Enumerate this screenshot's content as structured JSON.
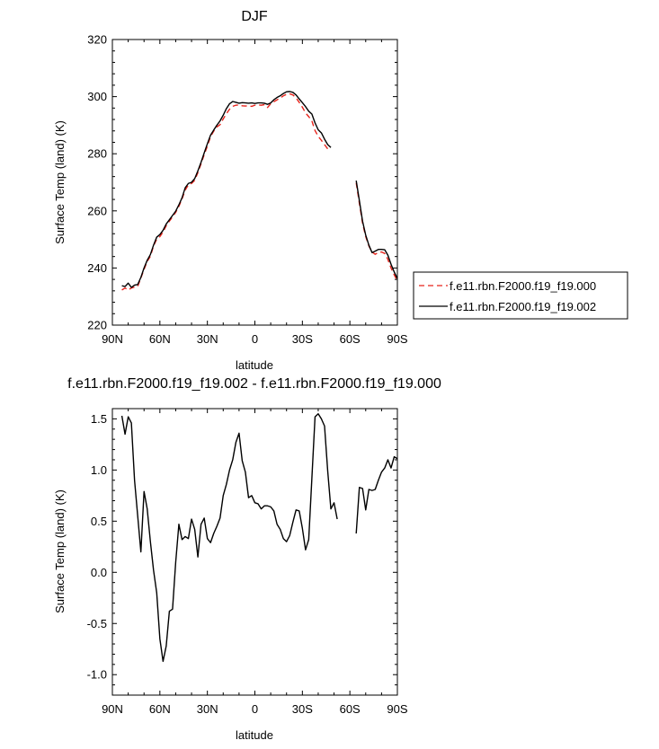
{
  "chart_data": [
    {
      "type": "line",
      "title": "DJF",
      "xlabel": "latitude",
      "ylabel": "Surface Temp (land) (K)",
      "xlim": [
        90,
        -90
      ],
      "ylim": [
        220,
        320
      ],
      "x_ticks": [
        90,
        60,
        30,
        0,
        -30,
        -60,
        -90
      ],
      "x_tick_labels": [
        "90N",
        "60N",
        "30N",
        "0",
        "30S",
        "60S",
        "90S"
      ],
      "y_ticks": [
        220,
        240,
        260,
        280,
        300,
        320
      ],
      "y_tick_labels": [
        "220",
        "240",
        "260",
        "280",
        "300",
        "320"
      ],
      "legend_position": "right",
      "series": [
        {
          "name": "f.e11.rbn.F2000.f19_f19.000",
          "color": "#e8231b",
          "dash": "dashed",
          "x": [
            84,
            82,
            80,
            78,
            76,
            74,
            72,
            70,
            68,
            66,
            64,
            62,
            60,
            58,
            56,
            54,
            52,
            50,
            48,
            46,
            44,
            42,
            40,
            38,
            36,
            34,
            32,
            30,
            28,
            26,
            24,
            22,
            20,
            18,
            16,
            14,
            12,
            10,
            8,
            6,
            4,
            2,
            0,
            -2,
            -4,
            -6,
            -8,
            -10,
            -12,
            -14,
            -16,
            -18,
            -20,
            -22,
            -24,
            -26,
            -28,
            -30,
            -32,
            -34,
            -36,
            -38,
            -40,
            -42,
            -44,
            -46,
            -48,
            -50,
            -52,
            -54,
            null,
            -64,
            -66,
            -68,
            -70,
            -72,
            -74,
            -76,
            -78,
            -80,
            -82,
            -84,
            -86,
            -88,
            -90
          ],
          "y": [
            232.3,
            233.0,
            232.3,
            233.0,
            233.3,
            233.6,
            236.5,
            239.5,
            242.3,
            244.1,
            247.7,
            250.1,
            251.0,
            252.6,
            254.8,
            256.4,
            257.9,
            259.5,
            261.6,
            264.2,
            267.3,
            269.1,
            269.6,
            270.7,
            273.4,
            276.5,
            279.7,
            282.7,
            286.0,
            287.9,
            289.4,
            290.2,
            292.2,
            294.0,
            295.6,
            296.6,
            297.0,
            297.1,
            296.8,
            296.7,
            296.8,
            296.6,
            297.0,
            297.1,
            297.0,
            297.2,
            296.2,
            297.5,
            298.2,
            298.9,
            299.5,
            300.3,
            300.8,
            301.0,
            300.6,
            299.6,
            298.0,
            296.3,
            294.3,
            293.0,
            291.5,
            288.1,
            286.1,
            284.7,
            283.2,
            281.7,
            null,
            null,
            null,
            null,
            null,
            269.8,
            262.7,
            255.7,
            251.0,
            247.7,
            245.6,
            244.8,
            245.4,
            245.6,
            245.1,
            243.0,
            240.0,
            237.6,
            235.5
          ],
          "note_gap": true
        },
        {
          "name": "f.e11.rbn.F2000.f19_f19.002",
          "color": "#000000",
          "dash": "solid",
          "x": [
            84,
            82,
            80,
            78,
            76,
            74,
            72,
            70,
            68,
            66,
            64,
            62,
            60,
            58,
            56,
            54,
            52,
            50,
            48,
            46,
            44,
            42,
            40,
            38,
            36,
            34,
            32,
            30,
            28,
            26,
            24,
            22,
            20,
            18,
            16,
            14,
            12,
            10,
            8,
            6,
            4,
            2,
            0,
            -2,
            -4,
            -6,
            -8,
            -10,
            -12,
            -14,
            -16,
            -18,
            -20,
            -22,
            -24,
            -26,
            -28,
            -30,
            -32,
            -34,
            -36,
            -38,
            -40,
            -42,
            -44,
            -46,
            -48,
            -50,
            -52,
            -54,
            null,
            -64,
            -66,
            -68,
            -70,
            -72,
            -74,
            -76,
            -78,
            -80,
            -82,
            -84,
            -86,
            -88,
            -90
          ],
          "y": [
            233.8,
            233.5,
            234.7,
            233.2,
            234.0,
            234.2,
            236.7,
            240.0,
            242.7,
            244.7,
            248.0,
            250.8,
            251.7,
            253.2,
            255.4,
            256.9,
            258.4,
            259.9,
            262.1,
            264.6,
            268.1,
            269.6,
            270.0,
            271.3,
            274.0,
            277.0,
            280.3,
            283.5,
            286.5,
            288.3,
            290.0,
            291.5,
            293.5,
            295.8,
            297.5,
            298.3,
            298.0,
            297.7,
            297.9,
            297.8,
            297.7,
            297.8,
            297.6,
            297.8,
            297.8,
            297.7,
            297.3,
            297.8,
            298.9,
            299.7,
            300.3,
            301.1,
            301.7,
            301.8,
            301.5,
            300.6,
            299.2,
            297.9,
            296.5,
            294.9,
            293.9,
            290.8,
            288.4,
            287.3,
            285.1,
            283.2,
            282.2,
            null,
            null,
            null,
            null,
            270.6,
            263.6,
            256.4,
            251.5,
            248.0,
            245.4,
            245.9,
            246.5,
            246.5,
            246.4,
            244.5,
            241.3,
            238.6,
            236.3
          ]
        }
      ]
    },
    {
      "type": "line",
      "title": "f.e11.rbn.F2000.f19_f19.002 - f.e11.rbn.F2000.f19_f19.000",
      "xlabel": "latitude",
      "ylabel": "Surface Temp (land) (K)",
      "xlim": [
        90,
        -90
      ],
      "ylim": [
        -1.2,
        1.6
      ],
      "x_ticks": [
        90,
        60,
        30,
        0,
        -30,
        -60,
        -90
      ],
      "x_tick_labels": [
        "90N",
        "60N",
        "30N",
        "0",
        "30S",
        "60S",
        "90S"
      ],
      "y_ticks": [
        -1.0,
        -0.5,
        0.0,
        0.5,
        1.0,
        1.5
      ],
      "y_tick_labels": [
        "-1.0",
        "-0.5",
        "0.0",
        "0.5",
        "1.0",
        "1.5"
      ],
      "series": [
        {
          "color": "#000000",
          "x": [
            84,
            82,
            80,
            78,
            76,
            74,
            72,
            70,
            68,
            66,
            64,
            62,
            60,
            58,
            56,
            54,
            52,
            50,
            48,
            46,
            44,
            42,
            40,
            38,
            36,
            34,
            32,
            30,
            28,
            26,
            24,
            22,
            20,
            18,
            16,
            14,
            12,
            10,
            8,
            6,
            4,
            2,
            0,
            -2,
            -4,
            -6,
            -8,
            -10,
            -12,
            -14,
            -16,
            -18,
            -20,
            -22,
            -24,
            -26,
            -28,
            -30,
            -32,
            -34,
            -36,
            -38,
            -40,
            -42,
            -44,
            -46,
            -48,
            -50,
            -52,
            -54,
            null,
            -64,
            -66,
            -68,
            -70,
            -72,
            -74,
            -76,
            -78,
            -80,
            -82,
            -84,
            -86,
            -88,
            -90
          ],
          "y": [
            1.53,
            1.35,
            1.52,
            1.46,
            0.9,
            0.55,
            0.2,
            0.79,
            0.62,
            0.3,
            0.02,
            -0.2,
            -0.65,
            -0.87,
            -0.72,
            -0.38,
            -0.36,
            0.1,
            0.47,
            0.32,
            0.35,
            0.33,
            0.52,
            0.42,
            0.15,
            0.47,
            0.53,
            0.33,
            0.29,
            0.38,
            0.45,
            0.53,
            0.75,
            0.86,
            1.0,
            1.1,
            1.27,
            1.36,
            1.09,
            0.98,
            0.73,
            0.75,
            0.68,
            0.67,
            0.62,
            0.65,
            0.65,
            0.64,
            0.6,
            0.47,
            0.42,
            0.33,
            0.3,
            0.36,
            0.49,
            0.61,
            0.6,
            0.43,
            0.22,
            0.32,
            0.92,
            1.52,
            1.55,
            1.5,
            1.43,
            0.99,
            0.62,
            0.68,
            0.52,
            null,
            null,
            0.38,
            0.83,
            0.82,
            0.61,
            0.81,
            0.8,
            0.81,
            0.9,
            0.98,
            1.02,
            1.1,
            1.02,
            1.13,
            1.11
          ]
        }
      ]
    }
  ]
}
